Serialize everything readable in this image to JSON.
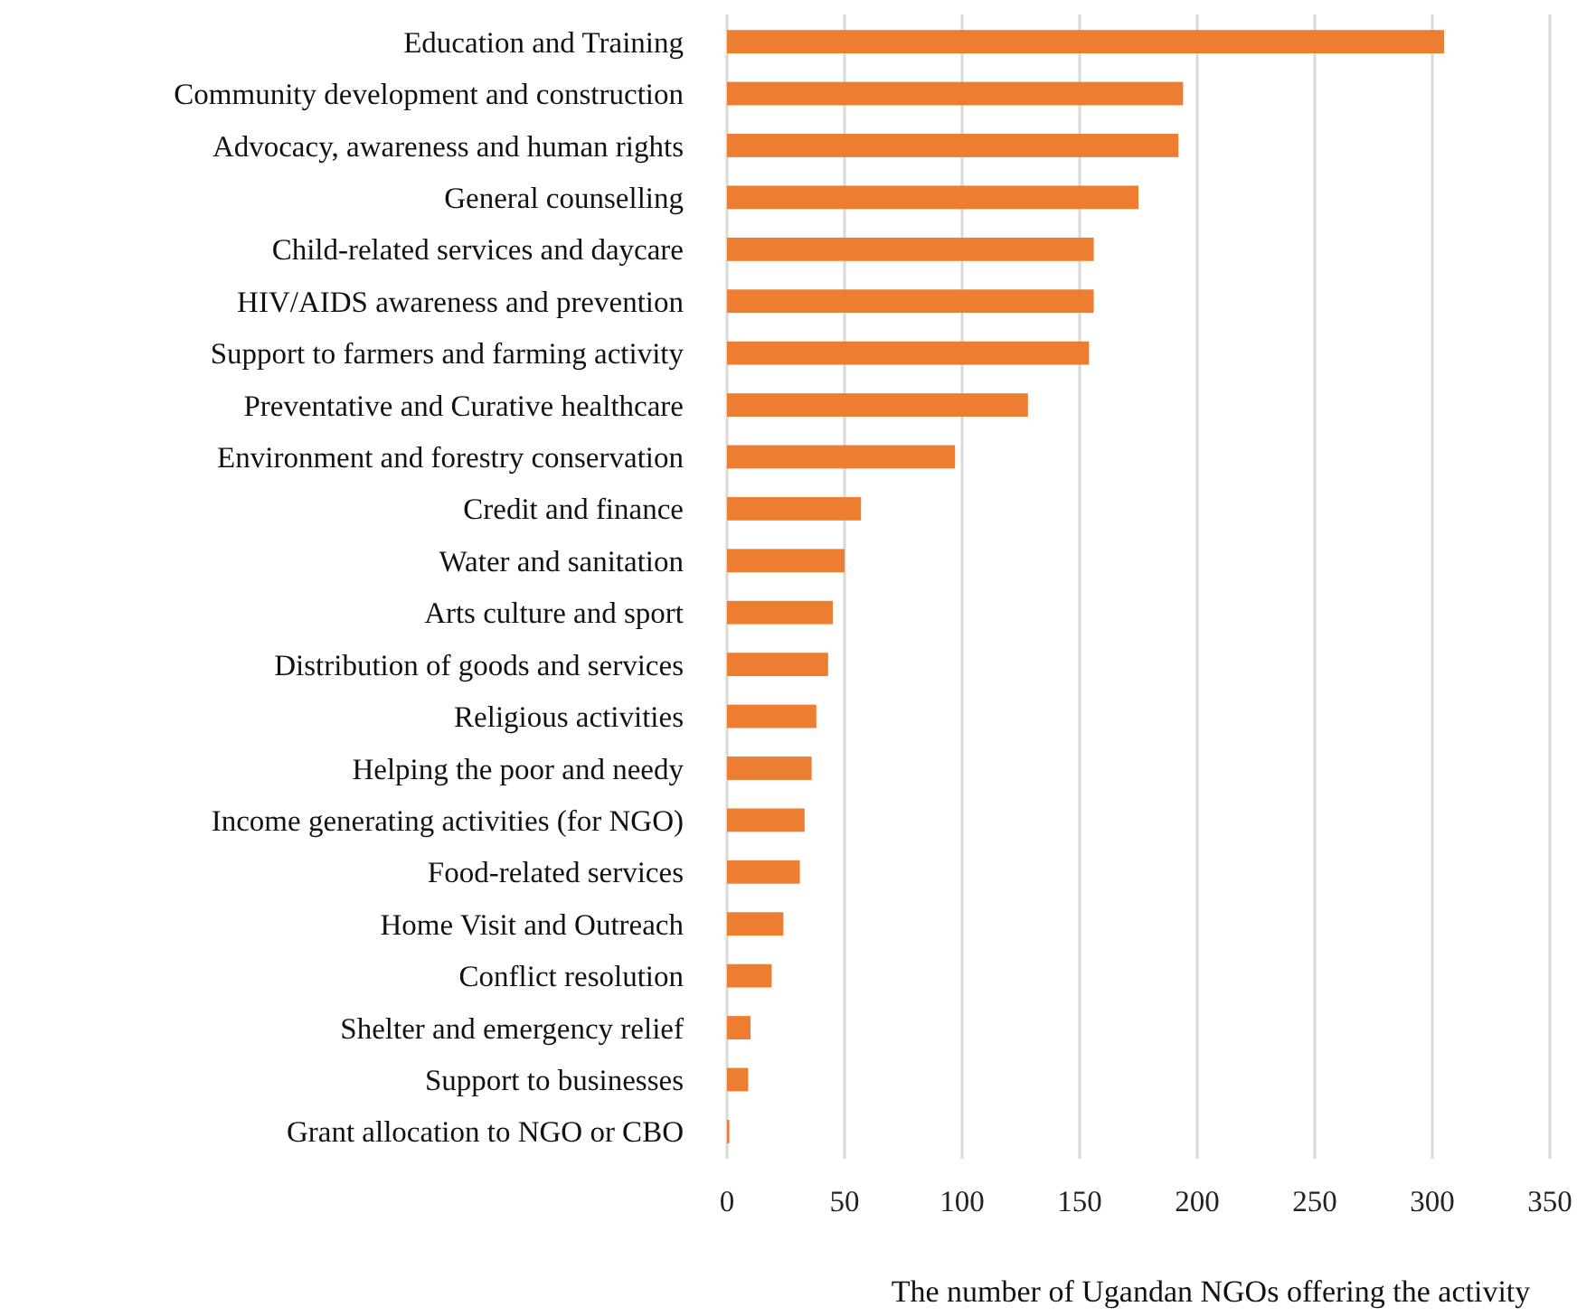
{
  "chart_data": {
    "type": "bar",
    "orientation": "horizontal",
    "xlabel": "The number of Ugandan NGOs offering the activity",
    "categories": [
      "Education and Training",
      "Community development and construction",
      "Advocacy, awareness and human rights",
      "General counselling",
      "Child-related services and daycare",
      "HIV/AIDS awareness and prevention",
      "Support to farmers and farming activity",
      "Preventative and Curative healthcare",
      "Environment and forestry conservation",
      "Credit and finance",
      "Water and sanitation",
      "Arts culture and sport",
      "Distribution of goods and services",
      "Religious activities",
      "Helping the poor and needy",
      "Income generating activities (for NGO)",
      "Food-related services",
      "Home Visit and Outreach",
      "Conflict resolution",
      "Shelter and emergency relief",
      "Support to businesses",
      "Grant allocation to NGO or CBO"
    ],
    "values": [
      305,
      194,
      192,
      175,
      156,
      156,
      154,
      128,
      97,
      57,
      50,
      45,
      43,
      38,
      36,
      33,
      31,
      24,
      19,
      10,
      9,
      1
    ],
    "color": "#ed7d31",
    "xlim": [
      0,
      350
    ],
    "xticks": [
      0,
      50,
      100,
      150,
      200,
      250,
      300,
      350
    ],
    "grid": "x"
  }
}
